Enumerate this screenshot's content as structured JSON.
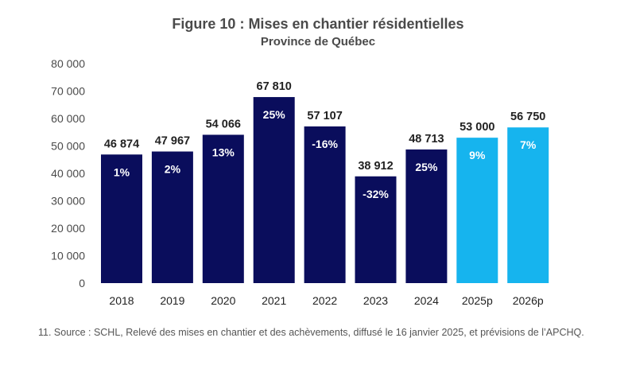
{
  "title": "Figure 10 : Mises en chantier résidentielles",
  "subtitle": "Province de Québec",
  "source_note": "11. Source : SCHL, Relevé des mises en chantier et des achèvements, diffusé le 16 janvier 2025, et prévisions de l’APCHQ.",
  "colors": {
    "actual": "#0a0d5c",
    "forecast": "#16b4ee",
    "text": "#4a4a4a",
    "label_dark": "#222222"
  },
  "chart_data": {
    "type": "bar",
    "title": "Figure 10 : Mises en chantier résidentielles",
    "subtitle": "Province de Québec",
    "categories": [
      "2018",
      "2019",
      "2020",
      "2021",
      "2022",
      "2023",
      "2024",
      "2025p",
      "2026p"
    ],
    "values": [
      46874,
      47967,
      54066,
      67810,
      57107,
      38912,
      48713,
      53000,
      56750
    ],
    "value_labels": [
      "46 874",
      "47 967",
      "54 066",
      "67 810",
      "57 107",
      "38 912",
      "48 713",
      "53 000",
      "56 750"
    ],
    "growth_labels": [
      "1%",
      "2%",
      "13%",
      "25%",
      "-16%",
      "-32%",
      "25%",
      "9%",
      "7%"
    ],
    "forecast": [
      false,
      false,
      false,
      false,
      false,
      false,
      false,
      true,
      true
    ],
    "ylim": [
      0,
      80000
    ],
    "yticks": [
      0,
      10000,
      20000,
      30000,
      40000,
      50000,
      60000,
      70000,
      80000
    ],
    "ytick_labels": [
      "0",
      "10 000",
      "20 000",
      "30 000",
      "40 000",
      "50 000",
      "60 000",
      "70 000",
      "80 000"
    ],
    "grid": false,
    "legend": "none"
  }
}
